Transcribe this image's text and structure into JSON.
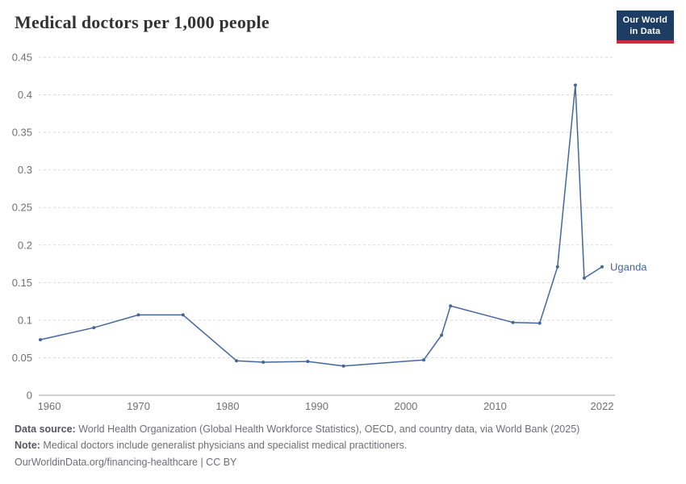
{
  "header": {
    "title": "Medical doctors per 1,000 people",
    "logo": {
      "line1": "Our World",
      "line2": "in Data"
    }
  },
  "chart_data": {
    "type": "line",
    "title": "Medical doctors per 1,000 people",
    "xlabel": "",
    "ylabel": "",
    "xlim": [
      1959,
      2022
    ],
    "ylim": [
      0,
      0.45
    ],
    "xticks": [
      1960,
      1970,
      1980,
      1990,
      2000,
      2010,
      2022
    ],
    "yticks": [
      0,
      0.05,
      0.1,
      0.15,
      0.2,
      0.25,
      0.3,
      0.35,
      0.4,
      0.45
    ],
    "grid": "horizontal-dashed",
    "legend_position": "end-of-line-label",
    "series": [
      {
        "name": "Uganda",
        "color": "#44679b",
        "points": [
          [
            1959,
            0.074
          ],
          [
            1965,
            0.09
          ],
          [
            1970,
            0.107
          ],
          [
            1975,
            0.107
          ],
          [
            1981,
            0.046
          ],
          [
            1984,
            0.044
          ],
          [
            1989,
            0.045
          ],
          [
            1993,
            0.039
          ],
          [
            2002,
            0.047
          ],
          [
            2004,
            0.08
          ],
          [
            2005,
            0.119
          ],
          [
            2012,
            0.097
          ],
          [
            2015,
            0.096
          ],
          [
            2017,
            0.171
          ],
          [
            2019,
            0.413
          ],
          [
            2020,
            0.156
          ],
          [
            2022,
            0.171
          ]
        ]
      }
    ]
  },
  "footer": {
    "source_label": "Data source:",
    "source_text": " World Health Organization (Global Health Workforce Statistics), OECD, and country data, via World Bank (2025)",
    "note_label": "Note:",
    "note_text": " Medical doctors include generalist physicians and specialist medical practitioners.",
    "license_line": "OurWorldinData.org/financing-healthcare | CC BY"
  },
  "colors": {
    "line": "#44679b",
    "grid": "#dadada",
    "axis_text": "#707070",
    "axis_line": "#a3a3a3",
    "logo_bg": "#1d3d63",
    "logo_accent": "#d62839"
  }
}
